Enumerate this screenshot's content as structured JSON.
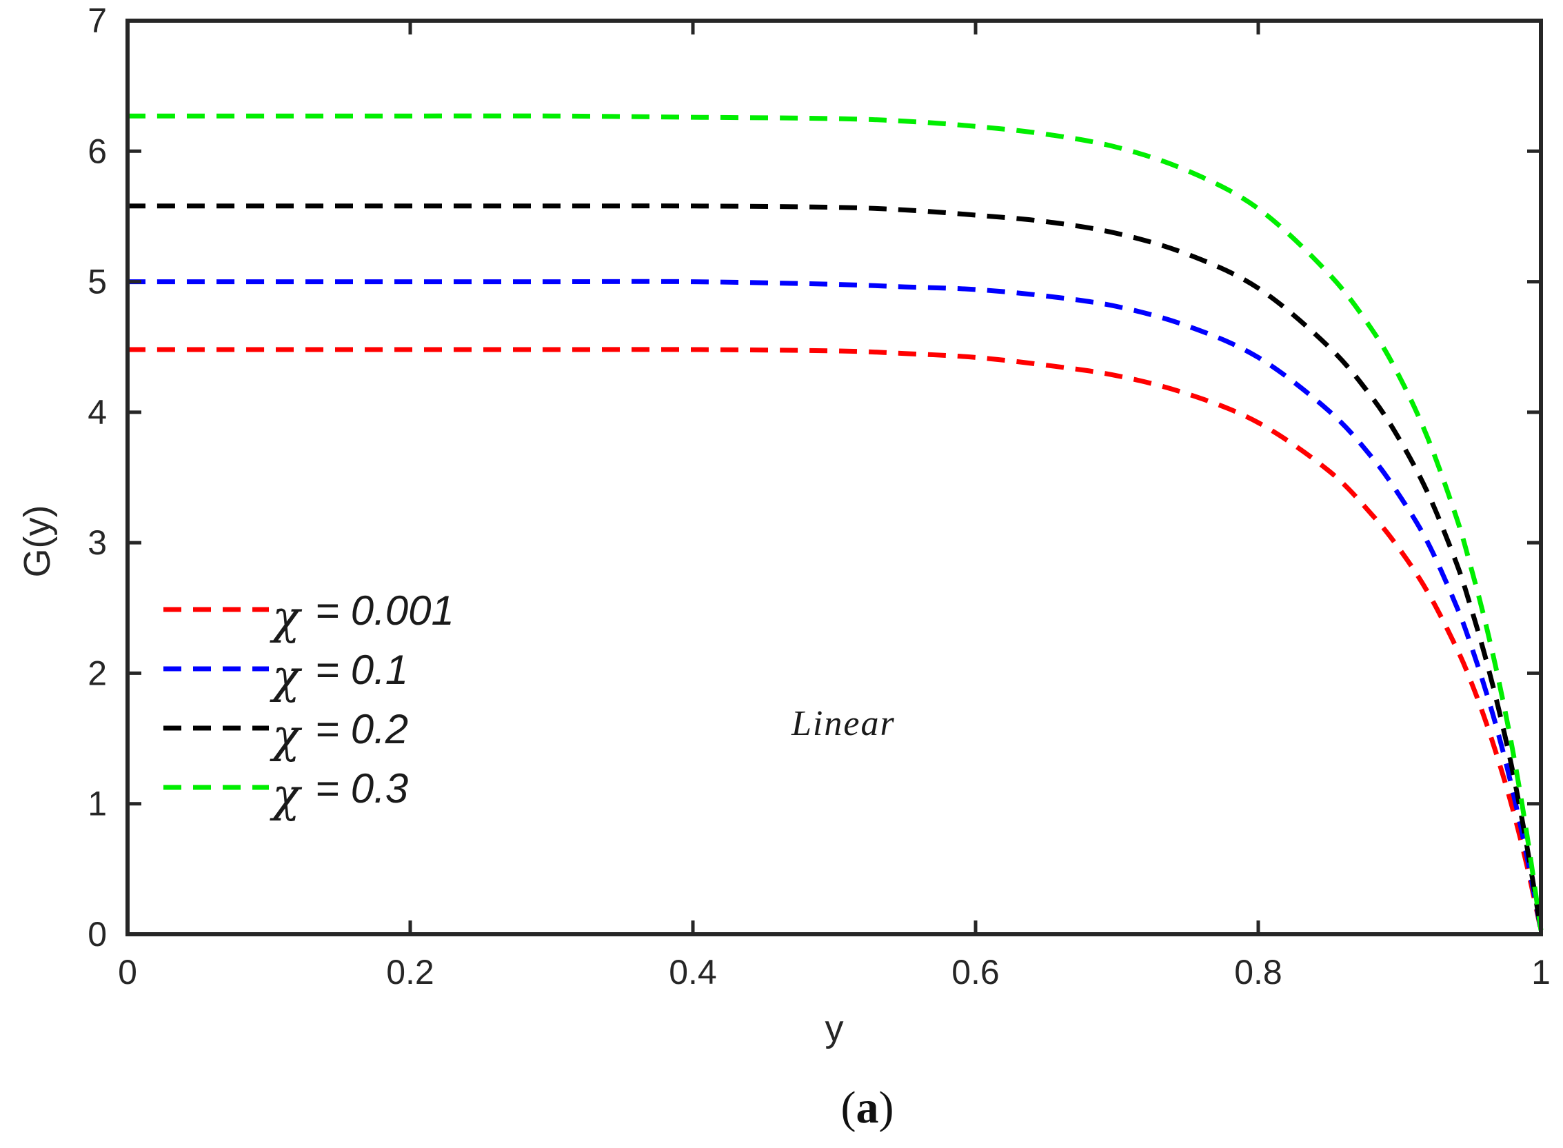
{
  "chart_data": {
    "type": "line",
    "title": "",
    "xlabel": "y",
    "ylabel": "G(y)",
    "xlim": [
      0,
      1
    ],
    "ylim": [
      0,
      7
    ],
    "xticks": [
      0,
      0.2,
      0.4,
      0.6,
      0.8,
      1
    ],
    "xtick_labels": [
      "0",
      "0.2",
      "0.4",
      "0.6",
      "0.8",
      "1"
    ],
    "yticks": [
      0,
      1,
      2,
      3,
      4,
      5,
      6,
      7
    ],
    "ytick_labels": [
      "0",
      "1",
      "2",
      "3",
      "4",
      "5",
      "6",
      "7"
    ],
    "grid": false,
    "legend_position": "left-middle",
    "annotation": "Linear",
    "caption_open": "(",
    "caption_letter": "a",
    "caption_close": ")",
    "x": [
      0,
      0.1,
      0.2,
      0.3,
      0.4,
      0.5,
      0.55,
      0.6,
      0.65,
      0.7,
      0.75,
      0.8,
      0.85,
      0.88,
      0.9,
      0.92,
      0.94,
      0.95,
      0.96,
      0.97,
      0.98,
      0.99,
      1.0
    ],
    "series": [
      {
        "name": "χ = 0.001",
        "symbol": "χ",
        "value_text": "= 0.001",
        "color": "#ff0000",
        "style": "dashed",
        "values": [
          4.48,
          4.48,
          4.48,
          4.48,
          4.48,
          4.47,
          4.45,
          4.42,
          4.36,
          4.28,
          4.14,
          3.92,
          3.55,
          3.22,
          2.95,
          2.62,
          2.2,
          1.95,
          1.66,
          1.33,
          0.96,
          0.53,
          0.03
        ]
      },
      {
        "name": "χ = 0.1",
        "symbol": "χ",
        "value_text": "= 0.1",
        "color": "#0000ff",
        "style": "dashed",
        "values": [
          5.0,
          5.0,
          5.0,
          5.0,
          5.0,
          4.98,
          4.96,
          4.94,
          4.89,
          4.81,
          4.66,
          4.42,
          4.01,
          3.66,
          3.36,
          3.0,
          2.52,
          2.23,
          1.9,
          1.53,
          1.1,
          0.6,
          0.03
        ]
      },
      {
        "name": "χ = 0.2",
        "symbol": "χ",
        "value_text": "= 0.2",
        "color": "#000000",
        "style": "dashed",
        "values": [
          5.58,
          5.58,
          5.58,
          5.58,
          5.58,
          5.57,
          5.55,
          5.51,
          5.46,
          5.37,
          5.21,
          4.95,
          4.5,
          4.12,
          3.79,
          3.38,
          2.85,
          2.52,
          2.15,
          1.73,
          1.25,
          0.68,
          0.03
        ]
      },
      {
        "name": "χ = 0.3",
        "symbol": "χ",
        "value_text": "= 0.3",
        "color": "#00ee00",
        "style": "dashed",
        "values": [
          6.27,
          6.27,
          6.27,
          6.27,
          6.26,
          6.25,
          6.23,
          6.19,
          6.13,
          6.03,
          5.85,
          5.56,
          5.06,
          4.64,
          4.27,
          3.8,
          3.2,
          2.83,
          2.42,
          1.95,
          1.41,
          0.77,
          0.03
        ]
      }
    ]
  }
}
